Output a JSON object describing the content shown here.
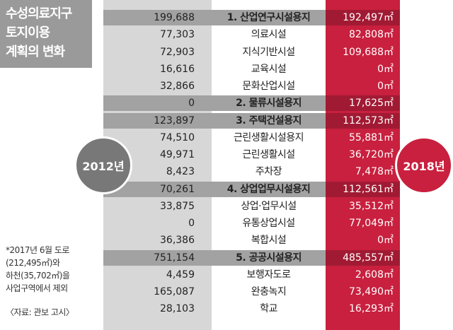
{
  "chart_data": {
    "type": "table",
    "title_lines": [
      "수성의료지구",
      "토지이용",
      "계획의 변화"
    ],
    "columns": [
      "2012년",
      "",
      "2018년"
    ],
    "unit": "㎡",
    "rows": [
      {
        "name": "1. 산업연구시설용지",
        "y2012": "199,688",
        "y2018": "192,497㎡",
        "category": true
      },
      {
        "name": "의료시설",
        "y2012": "77,303",
        "y2018": "82,808㎡",
        "category": false
      },
      {
        "name": "지식기반시설",
        "y2012": "72,903",
        "y2018": "109,688㎡",
        "category": false
      },
      {
        "name": "교육시설",
        "y2012": "16,616",
        "y2018": "0㎡",
        "category": false
      },
      {
        "name": "문화산업시설",
        "y2012": "32,866",
        "y2018": "0㎡",
        "category": false
      },
      {
        "name": "2. 물류시설용지",
        "y2012": "0",
        "y2018": "17,625㎡",
        "category": true
      },
      {
        "name": "3. 주택건설용지",
        "y2012": "123,897",
        "y2018": "112,573㎡",
        "category": true
      },
      {
        "name": "근린생활시설용지",
        "y2012": "74,510",
        "y2018": "55,881㎡",
        "category": false
      },
      {
        "name": "근린생활시설",
        "y2012": "49,971",
        "y2018": "36,720㎡",
        "category": false
      },
      {
        "name": "주차장",
        "y2012": "8,423",
        "y2018": "7,478㎡",
        "category": false
      },
      {
        "name": "4. 상업업무시설용지",
        "y2012": "70,261",
        "y2018": "112,561㎡",
        "category": true
      },
      {
        "name": "상업·업무시설",
        "y2012": "33,875",
        "y2018": "35,512㎡",
        "category": false
      },
      {
        "name": "유통상업시설",
        "y2012": "0",
        "y2018": "77,049㎡",
        "category": false
      },
      {
        "name": "복합시설",
        "y2012": "36,386",
        "y2018": "0㎡",
        "category": false
      },
      {
        "name": "5. 공공시설용지",
        "y2012": "751,154",
        "y2018": "485,557㎡",
        "category": true
      },
      {
        "name": "보행자도로",
        "y2012": "4,459",
        "y2018": "2,608㎡",
        "category": false
      },
      {
        "name": "완충녹지",
        "y2012": "165,087",
        "y2018": "73,490㎡",
        "category": false
      },
      {
        "name": "학교",
        "y2012": "28,103",
        "y2018": "16,293㎡",
        "category": false
      }
    ],
    "note_lines": [
      "*2017년 6월 도로",
      "(212,495㎡)와",
      "하천(35,702㎡)을",
      "사업구역에서 제외"
    ],
    "source": "〈자료: 관보 고시〉"
  }
}
